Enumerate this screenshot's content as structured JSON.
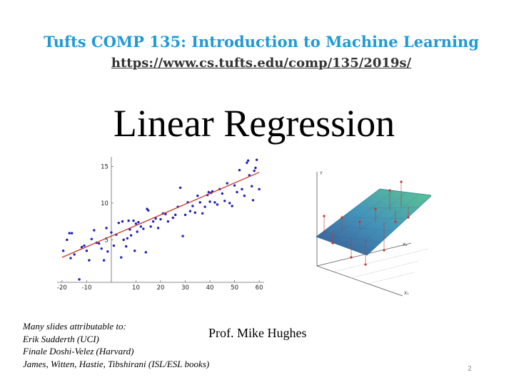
{
  "header": {
    "course": "Tufts COMP 135: Introduction to Machine Learning",
    "url": "https://www.cs.tufts.edu/comp/135/2019s/"
  },
  "title": "Linear Regression",
  "credits": [
    "Many slides attributable to:",
    "Erik Sudderth (UCI)",
    "Finale Doshi-Velez (Harvard)",
    "James, Witten, Hastie, Tibshirani (ISL/ESL books)"
  ],
  "instructor": "Prof. Mike Hughes",
  "page_number": "2",
  "colors": {
    "accent": "#1f9ad6",
    "points": "#1f1fbf",
    "fit_line": "#c0392b"
  },
  "chart_data": [
    {
      "type": "scatter",
      "title": "",
      "xlabel": "",
      "ylabel": "",
      "xlim": [
        -22,
        62
      ],
      "ylim": [
        -0.8,
        16.5
      ],
      "x_ticks": [
        -20,
        -10,
        10,
        20,
        30,
        40,
        50,
        60
      ],
      "x_tick_labels": [
        "-20",
        "-10",
        "10",
        "20",
        "30",
        "40",
        "50",
        "60"
      ],
      "y_ticks": [
        5,
        10,
        15
      ],
      "y_tick_labels": [
        "5",
        "10",
        "15"
      ],
      "grid": false,
      "series": [
        {
          "points": [
            [
              -19.5,
              3.5
            ],
            [
              -18,
              5
            ],
            [
              -17,
              5.9
            ],
            [
              -16.5,
              2.5
            ],
            [
              -16,
              5.9
            ],
            [
              -15,
              3
            ],
            [
              -13,
              -0.4
            ],
            [
              -12,
              4
            ],
            [
              -11,
              4.2
            ],
            [
              -10,
              3.5
            ],
            [
              -9,
              2.2
            ],
            [
              -8,
              5.1
            ],
            [
              -7,
              6.3
            ],
            [
              -6,
              4.6
            ],
            [
              -5,
              4.5
            ],
            [
              -4,
              3.8
            ],
            [
              -3,
              2.2
            ],
            [
              -2,
              6.6
            ],
            [
              -1.5,
              3.4
            ],
            [
              0,
              6
            ],
            [
              1,
              4.2
            ],
            [
              2,
              5.7
            ],
            [
              3,
              7.3
            ],
            [
              4,
              2.6
            ],
            [
              4.5,
              7.5
            ],
            [
              5,
              5
            ],
            [
              6,
              4.1
            ],
            [
              6.5,
              5.2
            ],
            [
              7,
              7.6
            ],
            [
              7.5,
              6.4
            ],
            [
              8,
              5.6
            ],
            [
              9,
              7.6
            ],
            [
              9.5,
              3.5
            ],
            [
              10,
              7.2
            ],
            [
              10.5,
              6.1
            ],
            [
              11,
              7.4
            ],
            [
              12,
              6.8
            ],
            [
              13,
              6.5
            ],
            [
              14,
              3.3
            ],
            [
              14.5,
              9.2
            ],
            [
              15,
              9
            ],
            [
              16,
              6.8
            ],
            [
              17,
              7.5
            ],
            [
              18,
              7.9
            ],
            [
              19,
              6.6
            ],
            [
              20,
              7.8
            ],
            [
              21,
              8.6
            ],
            [
              22,
              8.5
            ],
            [
              23,
              7.5
            ],
            [
              25,
              8
            ],
            [
              26,
              8.4
            ],
            [
              27,
              9.5
            ],
            [
              28,
              12.1
            ],
            [
              29,
              5.5
            ],
            [
              30,
              8.4
            ],
            [
              31,
              10.1
            ],
            [
              32,
              8.9
            ],
            [
              33,
              9.6
            ],
            [
              34,
              8.7
            ],
            [
              35,
              11
            ],
            [
              36,
              10.1
            ],
            [
              37,
              8.6
            ],
            [
              38,
              9.5
            ],
            [
              39,
              11.1
            ],
            [
              39.5,
              11.5
            ],
            [
              40,
              10.2
            ],
            [
              40.5,
              11.4
            ],
            [
              41,
              11.6
            ],
            [
              42,
              10.1
            ],
            [
              43,
              9.8
            ],
            [
              44,
              11.9
            ],
            [
              45,
              11.3
            ],
            [
              46,
              10.3
            ],
            [
              47,
              12.7
            ],
            [
              48,
              10
            ],
            [
              49,
              9.6
            ],
            [
              50,
              12.4
            ],
            [
              51,
              11.5
            ],
            [
              52,
              14.5
            ],
            [
              53,
              11.9
            ],
            [
              54,
              11
            ],
            [
              55,
              15.5
            ],
            [
              55.5,
              15.8
            ],
            [
              56,
              13.8
            ],
            [
              57,
              12.3
            ],
            [
              58,
              14.4
            ],
            [
              58.5,
              14.8
            ],
            [
              59,
              15.9
            ],
            [
              60,
              11.9
            ],
            [
              57.5,
              10.4
            ]
          ]
        }
      ],
      "fit_line": {
        "x": [
          -20,
          60
        ],
        "y": [
          2.6,
          14.2
        ]
      }
    },
    {
      "type": "surface",
      "title": "",
      "axis_labels": {
        "y": "Y",
        "x1": "X₁",
        "x2": "X₂"
      },
      "grid": false
    }
  ]
}
